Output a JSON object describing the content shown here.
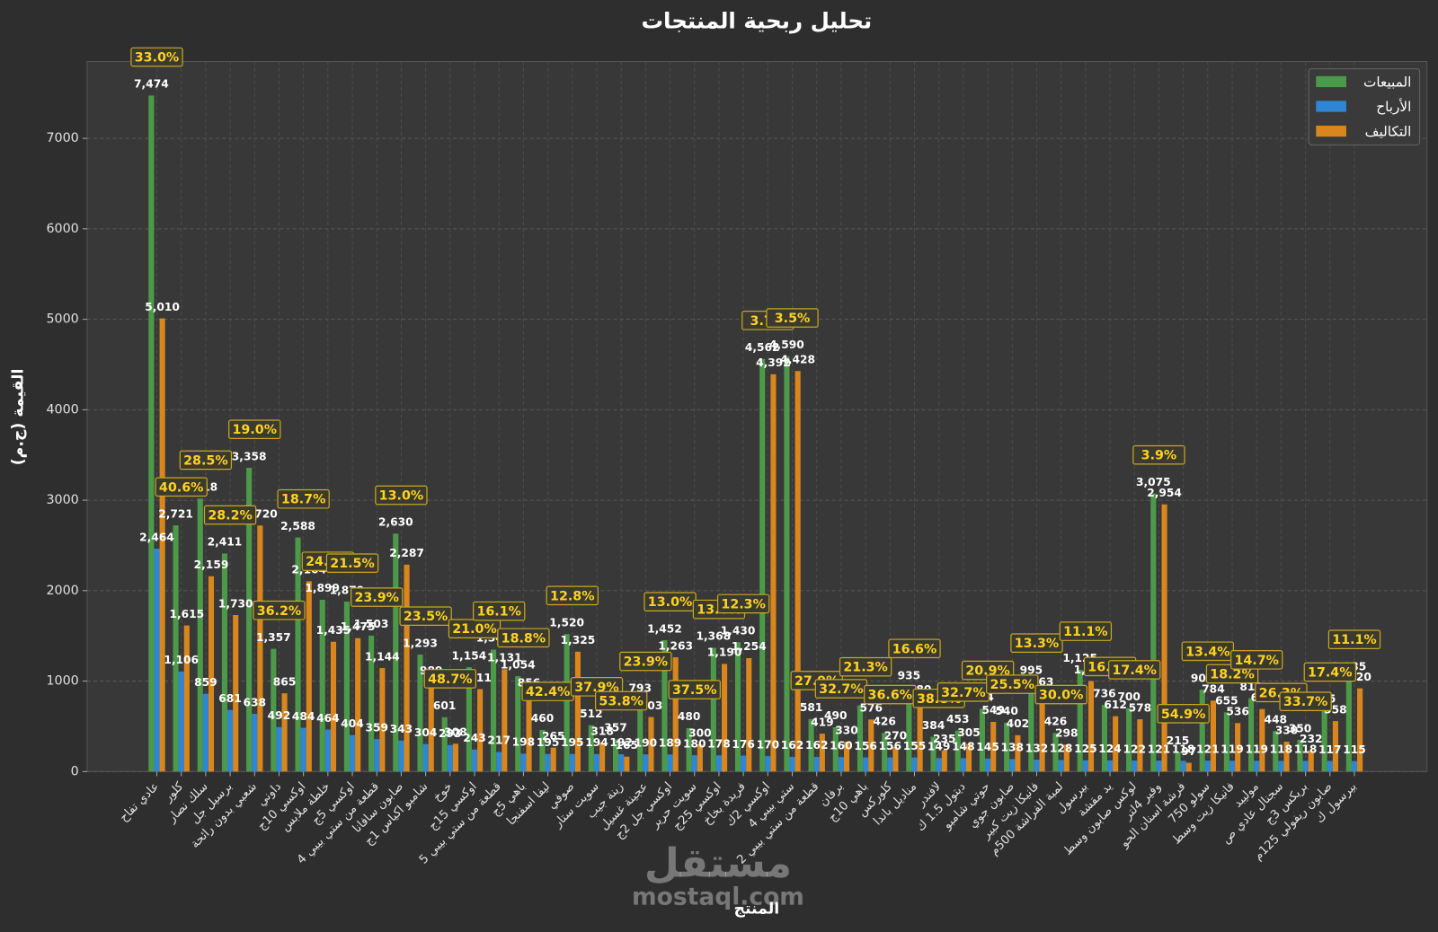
{
  "chart_data": {
    "type": "bar",
    "title": "تحليل ربحية المنتجات",
    "x_label": "المنتج",
    "y_label": "القيمة (ج.م)",
    "watermark": [
      "مستقل",
      "mostaql.com"
    ],
    "categories": [
      "عادي تفاح",
      "كلور",
      "سلك نصار",
      "برسيل جل",
      "شعبي بدون رائحة",
      "داوني",
      "اوكسي 10ج",
      "خلطة ملابس",
      "اوكسي 5ج",
      "قطعة من ستي بيبي 4",
      "صابون سافانا",
      "شامبو اكياس 1ج",
      "خوخ",
      "اوكسي 15ج",
      "قطعة من ستي بيبي 5",
      "باهي 5ج",
      "ليفا اسفنجا",
      "صوفي",
      "سويت ستار",
      "زينة جيب",
      "عجينة غسيل",
      "اوكسي جل 2ج",
      "سويت حرير",
      "اوكسي 25ج",
      "فريدة بخاخ",
      "اوكسي 2ك",
      "ستي بيبي 4",
      "قطعة من ستي بيبي 2",
      "برفان",
      "باهي 10ج",
      "كلوركس",
      "مناديل باندا",
      "لافندر",
      "ديتول 1.5 ك",
      "حوتي شامبو",
      "صابون جوي",
      "فانيكا زيت كبير",
      "لمبة الفراشة 500م",
      "بيرسول",
      "يد مقشة",
      "لوكس صابون وسط",
      "وفير 4لتر",
      "فرشة اسنان الحو",
      "سولو 750",
      "فانيكا زيت وسط",
      "موليبد",
      "سجنال عادي ص",
      "بريكس 3ج",
      "صابون ريفولي 125م",
      "بيرسول ك"
    ],
    "series": [
      {
        "name": "المبيعات",
        "color": "#4c9a49",
        "values": [
          7474,
          2721,
          3018,
          2411,
          3358,
          1357,
          2588,
          1899,
          1879,
          1503,
          2630,
          1293,
          601,
          1154,
          1348,
          1054,
          460,
          1520,
          512,
          357,
          793,
          1452,
          480,
          1368,
          1430,
          4562,
          4590,
          581,
          490,
          732,
          426,
          935,
          384,
          453,
          694,
          540,
          995,
          426,
          1125,
          736,
          700,
          3075,
          215,
          905,
          655,
          810,
          448,
          350,
          675,
          1035
        ],
        "value_labels": [
          "7,474",
          "2,721",
          "3,018",
          "2,411",
          "3,358",
          "1,357",
          "2,588",
          "1,899",
          "1,879",
          "1,503",
          "2,630",
          "1,293",
          "601",
          "1,154",
          "1,348",
          "1,054",
          "460",
          "1,520",
          "512",
          "357",
          "793",
          "1,452",
          "480",
          "1,368",
          "1,430",
          "4,562",
          "4,590",
          "581",
          "490",
          "732",
          "426",
          "935",
          "384",
          "453",
          "694",
          "540",
          "995",
          "426",
          "1,125",
          "736",
          "700",
          "3,075",
          "215",
          "905",
          "655",
          "810",
          "448",
          "350",
          "675",
          "1,035"
        ]
      },
      {
        "name": "الأرباح",
        "color": "#2f86d4",
        "values": [
          2464,
          1106,
          859,
          681,
          638,
          492,
          484,
          464,
          404,
          359,
          343,
          304,
          293,
          243,
          217,
          198,
          195,
          195,
          194,
          192,
          190,
          189,
          180,
          178,
          176,
          170,
          162,
          162,
          160,
          156,
          156,
          155,
          149,
          148,
          145,
          138,
          132,
          128,
          125,
          124,
          122,
          121,
          118,
          121,
          119,
          119,
          118,
          118,
          117,
          115
        ],
        "value_labels": [
          "2,464",
          "1,106",
          "859",
          "681",
          "638",
          "492",
          "484",
          "464",
          "404",
          "359",
          "343",
          "304",
          "293",
          "243",
          "217",
          "198",
          "195",
          "195",
          "194",
          "192",
          "190",
          "189",
          "180",
          "178",
          "176",
          "170",
          "162",
          "162",
          "160",
          "156",
          "156",
          "155",
          "149",
          "148",
          "145",
          "138",
          "132",
          "128",
          "125",
          "124",
          "122",
          "121",
          "118",
          "121",
          "119",
          "119",
          "118",
          "118",
          "117",
          "115"
        ]
      },
      {
        "name": "التكاليف",
        "color": "#d8861d",
        "values": [
          5010,
          1615,
          2159,
          1730,
          2720,
          865,
          2104,
          1435,
          1475,
          1144,
          2287,
          989,
          308,
          911,
          1131,
          856,
          265,
          1325,
          318,
          165,
          603,
          1263,
          300,
          1190,
          1254,
          4392,
          4428,
          419,
          330,
          576,
          270,
          780,
          235,
          305,
          549,
          402,
          863,
          298,
          1000,
          612,
          578,
          2954,
          97,
          784,
          536,
          691,
          330,
          232,
          558,
          920
        ],
        "value_labels": [
          "5,010",
          "1,615",
          "2,159",
          "1,730",
          "2,720",
          "865",
          "2,104",
          "1,435",
          "1,475",
          "1,144",
          "2,287",
          "989",
          "308",
          "911",
          "1,131",
          "856",
          "265",
          "1,325",
          "318",
          "165",
          "603",
          "1,263",
          "300",
          "1,190",
          "1,254",
          "4,392",
          "4,428",
          "419",
          "330",
          "576",
          "270",
          "780",
          "235",
          "305",
          "549",
          "402",
          "863",
          "298",
          "1,000",
          "612",
          "578",
          "2,954",
          "97",
          "784",
          "536",
          "691",
          "330",
          "232",
          "558",
          "920"
        ]
      }
    ],
    "margin_labels": [
      "33.0%",
      "40.6%",
      "28.5%",
      "28.2%",
      "19.0%",
      "36.2%",
      "18.7%",
      "24.4%",
      "21.5%",
      "23.9%",
      "13.0%",
      "23.5%",
      "48.7%",
      "21.0%",
      "16.1%",
      "18.8%",
      "42.4%",
      "12.8%",
      "37.9%",
      "53.8%",
      "23.9%",
      "13.0%",
      "37.5%",
      "13.0%",
      "12.3%",
      "3.7%",
      "3.5%",
      "27.9%",
      "32.7%",
      "21.3%",
      "36.6%",
      "16.6%",
      "38.8%",
      "32.7%",
      "20.9%",
      "25.5%",
      "13.3%",
      "30.0%",
      "11.1%",
      "16.8%",
      "17.4%",
      "3.9%",
      "54.9%",
      "13.4%",
      "18.2%",
      "14.7%",
      "26.3%",
      "33.7%",
      "17.4%",
      "11.1%"
    ],
    "ylim": [
      0,
      7850
    ],
    "yticks": [
      0,
      1000,
      2000,
      3000,
      4000,
      5000,
      6000,
      7000
    ],
    "grid": true,
    "legend": "upper right"
  }
}
